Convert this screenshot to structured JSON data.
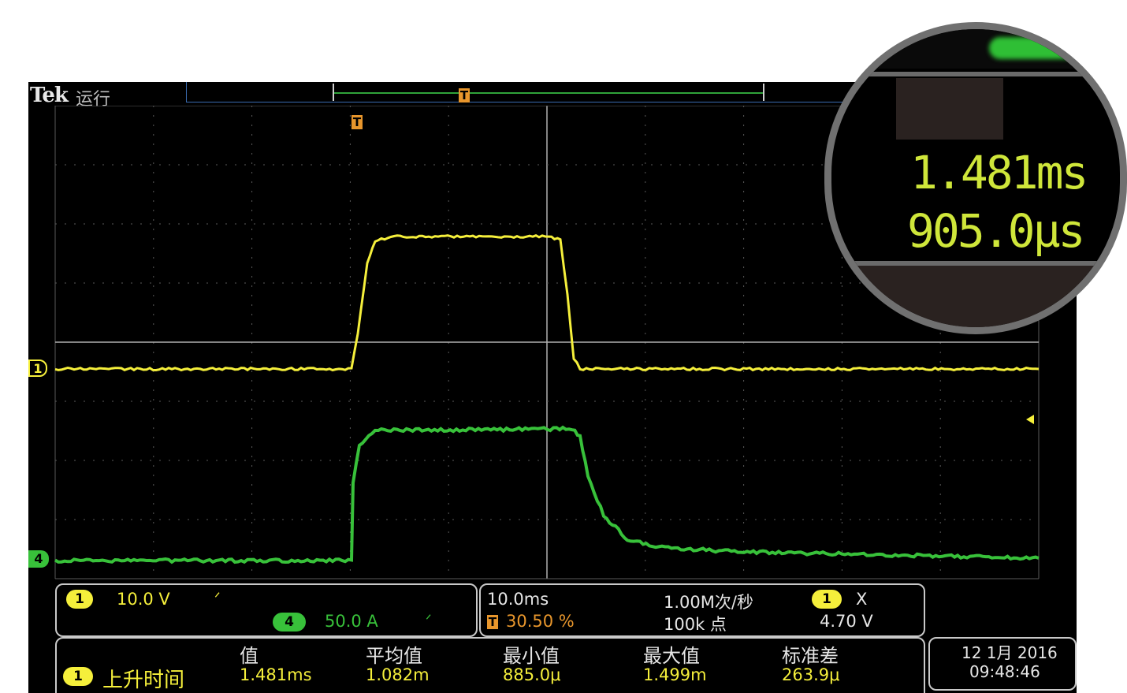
{
  "header": {
    "brand": "Tek",
    "run_state": "运行"
  },
  "markers": {
    "trigger_label": "T",
    "ch1_label": "1",
    "ch4_label": "4"
  },
  "channels": {
    "ch1": {
      "label": "1",
      "scale": "10.0 V",
      "color": "#f5ef3b"
    },
    "ch4": {
      "label": "4",
      "scale": "50.0 A",
      "color": "#38c13a"
    }
  },
  "timebase": {
    "horizontal_scale": "10.0ms",
    "trigger_position": "30.50 %",
    "sample_rate": "1.00M次/秒",
    "record_length": "100k 点",
    "trigger_channel": "1",
    "trigger_slope": "X",
    "trigger_level": "4.70 V"
  },
  "measurements": {
    "headers": [
      "值",
      "平均值",
      "最小值",
      "最大值",
      "标准差"
    ],
    "rows": [
      {
        "channel": "1",
        "name": "上升时间",
        "value": "1.481ms",
        "mean": "1.082m",
        "min": "885.0μ",
        "max": "1.499m",
        "std": "263.9μ"
      }
    ]
  },
  "datetime": {
    "date": "12 1月 2016",
    "time": "09:48:46"
  },
  "magnifier": {
    "line1": "1.481ms",
    "line2": "905.0μs"
  },
  "colors": {
    "ch1": "#f5ef3b",
    "ch4": "#38c13a",
    "grid": "#9a9a9a",
    "trigger_marker": "#e8962c"
  }
}
